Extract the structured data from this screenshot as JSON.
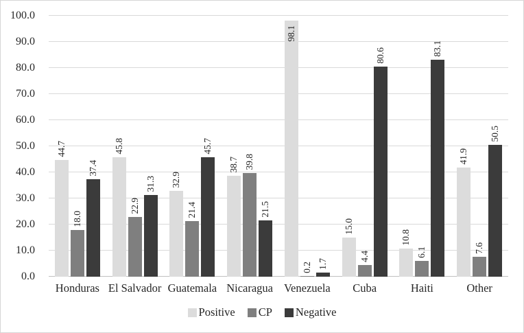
{
  "chart_data": {
    "type": "bar",
    "title": "",
    "xlabel": "",
    "ylabel": "",
    "categories": [
      "Honduras",
      "El Salvador",
      "Guatemala",
      "Nicaragua",
      "Venezuela",
      "Cuba",
      "Haiti",
      "Other"
    ],
    "series": [
      {
        "name": "Positive",
        "color": "#dcdcdc",
        "values": [
          44.7,
          45.8,
          32.9,
          38.7,
          98.1,
          15.0,
          10.8,
          41.9
        ]
      },
      {
        "name": "CP",
        "color": "#7f7f7f",
        "values": [
          18.0,
          22.9,
          21.4,
          39.8,
          0.2,
          4.4,
          6.1,
          7.6
        ]
      },
      {
        "name": "Negative",
        "color": "#3b3b3b",
        "values": [
          37.4,
          31.3,
          45.7,
          21.5,
          1.7,
          80.6,
          83.1,
          50.5
        ]
      }
    ],
    "ylim": [
      0,
      100
    ],
    "ytick_step": 10,
    "ytick_format_decimals": 1,
    "grid": "horizontal",
    "legend_position": "bottom",
    "data_labels": "rotated-90-above-bars",
    "inside_label_threshold": 95
  },
  "colors": {
    "background": "#ffffff",
    "chart_border": "#d6d6d6",
    "gridline": "#d9d9d9",
    "axis_line": "#c0c0c0",
    "text": "#262626"
  }
}
